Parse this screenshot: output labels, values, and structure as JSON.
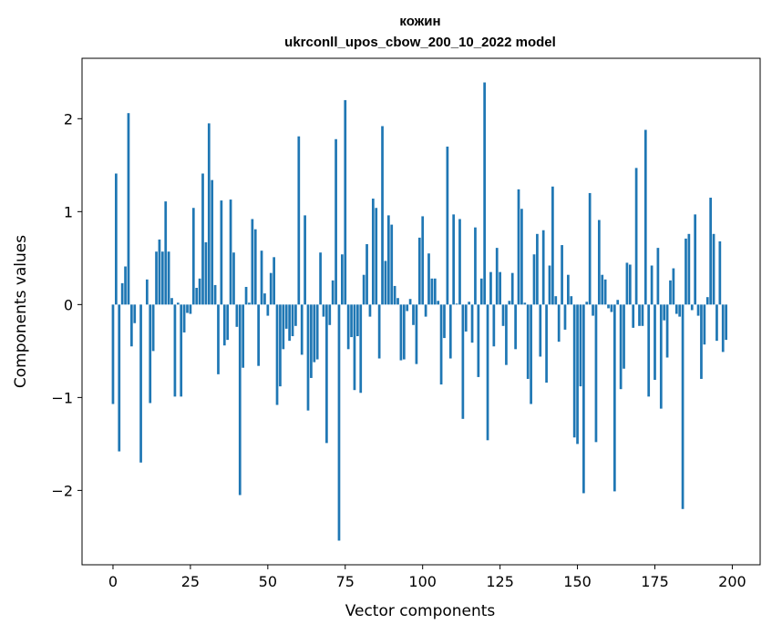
{
  "chart_data": {
    "type": "bar",
    "title": "кожин",
    "subtitle": "ukrconll_upos_cbow_200_10_2022 model",
    "xlabel": "Vector components",
    "ylabel": "Components values",
    "xlim": [
      -10,
      209
    ],
    "ylim": [
      -2.8,
      2.65
    ],
    "xticks": [
      0,
      25,
      50,
      75,
      100,
      125,
      150,
      175,
      200
    ],
    "yticks": [
      -2,
      -1,
      0,
      1,
      2
    ],
    "ytick_labels": [
      "−2",
      "−1",
      "0",
      "1",
      "2"
    ],
    "grid": false,
    "legend": "none",
    "bar_color": "#1f77b4",
    "values": [
      -1.07,
      1.41,
      -1.58,
      0.23,
      0.41,
      2.06,
      -0.45,
      -0.2,
      0.0,
      -1.7,
      0.0,
      0.27,
      -1.06,
      -0.5,
      0.57,
      0.7,
      0.57,
      1.11,
      0.57,
      0.07,
      -0.99,
      0.02,
      -0.99,
      -0.3,
      -0.09,
      -0.1,
      1.04,
      0.18,
      0.28,
      1.41,
      0.67,
      1.95,
      1.34,
      0.21,
      -0.75,
      1.12,
      -0.44,
      -0.38,
      1.13,
      0.56,
      -0.24,
      -2.05,
      -0.68,
      0.19,
      0.02,
      0.92,
      0.81,
      -0.66,
      0.58,
      0.12,
      -0.12,
      0.34,
      0.51,
      -1.08,
      -0.88,
      -0.48,
      -0.26,
      -0.39,
      -0.34,
      -0.23,
      1.81,
      -0.54,
      0.96,
      -1.14,
      -0.79,
      -0.62,
      -0.59,
      0.56,
      -0.13,
      -1.49,
      -0.22,
      0.26,
      1.78,
      -2.54,
      0.54,
      2.2,
      -0.48,
      -0.35,
      -0.92,
      -0.34,
      -0.95,
      0.32,
      0.65,
      -0.13,
      1.14,
      1.04,
      -0.58,
      1.92,
      0.47,
      0.96,
      0.86,
      0.2,
      0.07,
      -0.6,
      -0.59,
      -0.07,
      0.06,
      -0.22,
      -0.64,
      0.72,
      0.95,
      -0.13,
      0.55,
      0.28,
      0.28,
      0.04,
      -0.86,
      -0.36,
      1.7,
      -0.58,
      0.97,
      0.01,
      0.92,
      -1.23,
      -0.29,
      0.03,
      -0.41,
      0.83,
      -0.78,
      0.28,
      2.39,
      -1.46,
      0.35,
      -0.45,
      0.61,
      0.35,
      -0.23,
      -0.65,
      0.04,
      0.34,
      -0.48,
      1.24,
      1.03,
      0.02,
      -0.8,
      -1.07,
      0.54,
      0.76,
      -0.56,
      0.8,
      -0.84,
      0.42,
      1.27,
      0.09,
      -0.4,
      0.64,
      -0.27,
      0.32,
      0.09,
      -1.43,
      -1.5,
      -0.88,
      -2.03,
      0.03,
      1.2,
      -0.12,
      -1.48,
      0.91,
      0.32,
      0.27,
      -0.04,
      -0.08,
      -2.01,
      0.05,
      -0.91,
      -0.69,
      0.45,
      0.43,
      -0.25,
      1.47,
      -0.23,
      -0.23,
      1.88,
      -0.99,
      0.42,
      -0.81,
      0.61,
      -1.12,
      -0.17,
      -0.57,
      0.26,
      0.39,
      -0.1,
      -0.13,
      -2.2,
      0.71,
      0.76,
      -0.06,
      0.97,
      -0.12,
      -0.8,
      -0.43,
      0.08,
      1.15,
      0.76,
      -0.39,
      0.68,
      -0.51,
      -0.38
    ]
  }
}
